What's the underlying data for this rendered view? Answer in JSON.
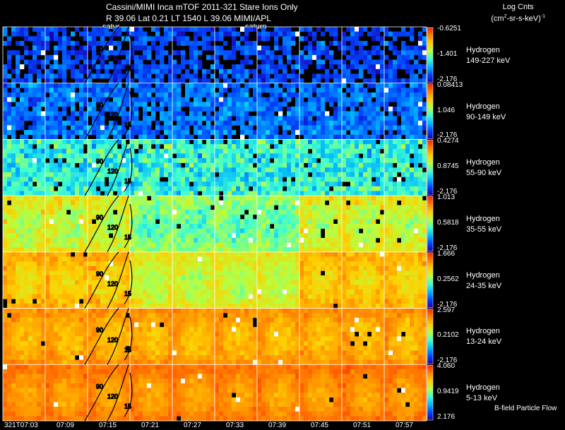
{
  "header": {
    "title": "Cassini/MIMI Inca mTOF  2011-321   Stare   Ions Only",
    "subtitle": "R          39.06 Lat 0.21 LT 1540 L          39.06  MIMI/APL",
    "legend_title_line1": "Log Cnts",
    "legend_title_line2": "(cm",
    "legend_title_sup": "2",
    "legend_title_line2b": "-sr-s-keV)",
    "legend_title_sup2": "-1"
  },
  "annotations": {
    "saturn_left": "satur",
    "saturn_right": "saturn",
    "flow_label": "B-field Particle Flow",
    "contour_labels": [
      "90",
      "120",
      "15"
    ]
  },
  "chart_data": {
    "type": "heatmap",
    "x_ticks": [
      "321T07:03",
      "07:09",
      "07:15",
      "07:21",
      "07:27",
      "07:33",
      "07:39",
      "07:45",
      "07:51",
      "07:57"
    ],
    "columns_per_image": 10,
    "colors": {
      "scale": [
        "#1a00b0",
        "#0046ff",
        "#00b8ff",
        "#40ffd0",
        "#b8ff40",
        "#ffd000",
        "#ff8000",
        "#ff2000"
      ],
      "saturation": "#ffffff",
      "background": "#000000",
      "grid": "#ffffff",
      "contour": "#000000"
    },
    "panels": [
      {
        "species": "Hydrogen",
        "energy": "149-227 keV",
        "max": "-0.6251",
        "mid": "-1.401",
        "min": "-2.176",
        "mean_level": 0.14,
        "spread": 0.16,
        "empty": 0.3
      },
      {
        "species": "Hydrogen",
        "energy": "90-149 keV",
        "max": "0.08413",
        "mid": "1.046",
        "min": "-2.176",
        "mean_level": 0.2,
        "spread": 0.16,
        "empty": 0.12
      },
      {
        "species": "Hydrogen",
        "energy": "55-90 keV",
        "max": "0.4274",
        "mid": "0.8745",
        "min": "-2.176",
        "mean_level": 0.4,
        "spread": 0.24,
        "empty": 0.05
      },
      {
        "species": "Hydrogen",
        "energy": "35-55 keV",
        "max": "1.013",
        "mid": "0.5818",
        "min": "-2.176",
        "mean_level": 0.66,
        "spread": 0.15,
        "empty": 0.02
      },
      {
        "species": "Hydrogen",
        "energy": "24-35 keV",
        "max": "1.666",
        "mid": "0.2562",
        "min": "-2.176",
        "mean_level": 0.78,
        "spread": 0.11,
        "empty": 0.01
      },
      {
        "species": "Hydrogen",
        "energy": "13-24 keV",
        "max": "2.597",
        "mid": "0.2102",
        "min": "-2.176",
        "mean_level": 0.83,
        "spread": 0.09,
        "empty": 0.01
      },
      {
        "species": "Hydrogen",
        "energy": "5-13 keV",
        "max": "4.060",
        "mid": "0.9419",
        "min": "2.176",
        "mean_level": 0.88,
        "spread": 0.07,
        "empty": 0.01
      }
    ]
  }
}
